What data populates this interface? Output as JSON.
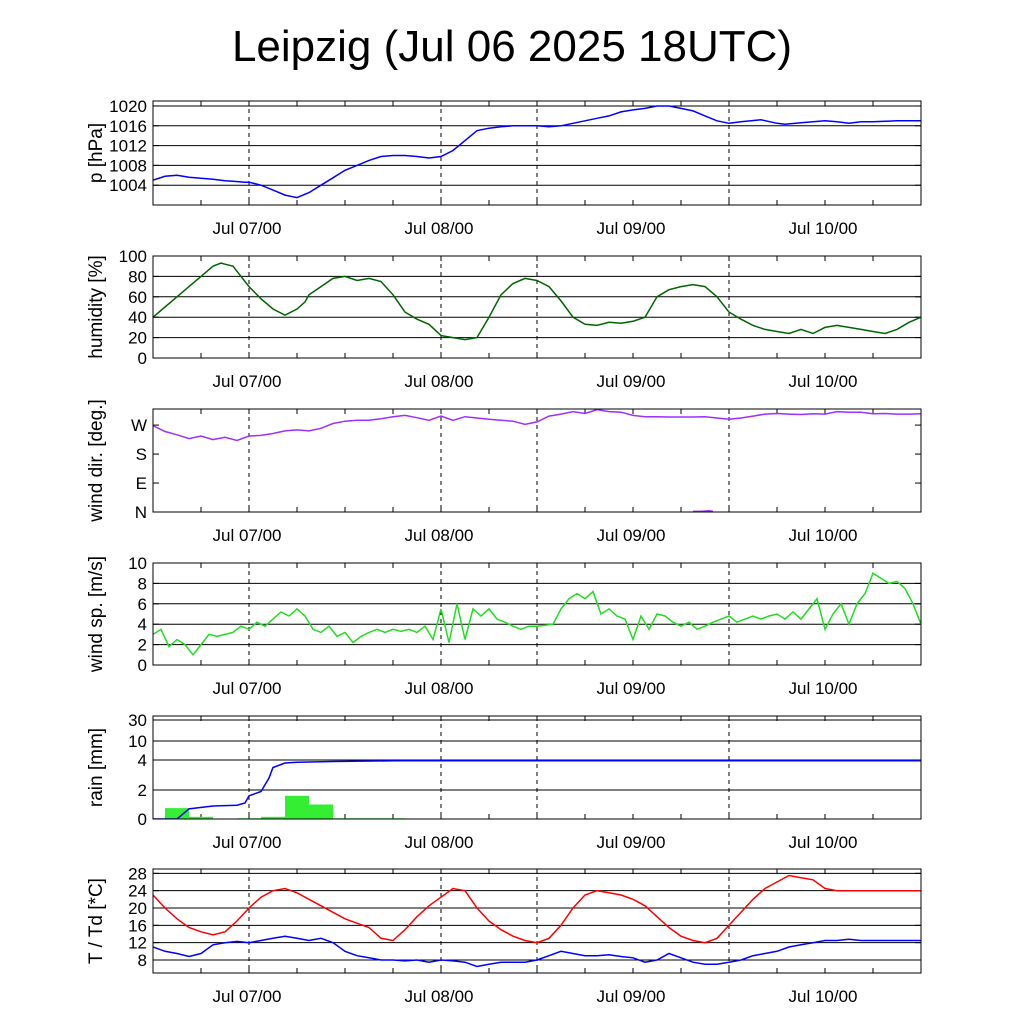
{
  "title": "Leipzig (Jul 06 2025 18UTC)",
  "chart_data": [
    {
      "id": "pressure",
      "type": "line",
      "ylabel": "p [hPa]",
      "ylim": [
        1000,
        1021
      ],
      "yticks": [
        1004,
        1008,
        1012,
        1016,
        1020
      ],
      "grid": true,
      "xlabels": [
        "Jul 07/00",
        "Jul 08/00",
        "Jul 09/00",
        "Jul 10/00"
      ],
      "series": [
        {
          "color": "#0000ff",
          "x": [
            0,
            3,
            6,
            9,
            12,
            15,
            18,
            20,
            23,
            24,
            27,
            30,
            33,
            36,
            39,
            42,
            45,
            48,
            51,
            54,
            57,
            60,
            63,
            66,
            69,
            72,
            75,
            78,
            81,
            84,
            87,
            90,
            93,
            96,
            99,
            102,
            105,
            108,
            111,
            114,
            117,
            120,
            123,
            126,
            129,
            132,
            135,
            138,
            141,
            144,
            147,
            152,
            156,
            158,
            162,
            168,
            171,
            174,
            177,
            180,
            183,
            186,
            192
          ],
          "y": [
            1005,
            1005.8,
            1006,
            1005.6,
            1005.4,
            1005.2,
            1004.9,
            1004.8,
            1004.6,
            1004.6,
            1004,
            1003,
            1002,
            1001.5,
            1002.5,
            1004,
            1005.5,
            1007,
            1008,
            1009,
            1009.8,
            1010,
            1010,
            1009.8,
            1009.5,
            1009.8,
            1011,
            1013,
            1015,
            1015.5,
            1015.8,
            1016,
            1016,
            1016,
            1015.8,
            1016,
            1016.5,
            1017,
            1017.5,
            1018,
            1018.8,
            1019.2,
            1019.5,
            1020,
            1020,
            1019.5,
            1019,
            1018,
            1017,
            1016.5,
            1016.8,
            1017.2,
            1016.5,
            1016.3,
            1016.6,
            1017,
            1016.8,
            1016.5,
            1016.8,
            1016.8,
            1016.9,
            1017,
            1017
          ]
        }
      ]
    },
    {
      "id": "humidity",
      "type": "line",
      "ylabel": "humidity [%]",
      "ylim": [
        0,
        100
      ],
      "yticks": [
        0,
        20,
        40,
        60,
        80,
        100
      ],
      "grid": true,
      "xlabels": [
        "Jul 07/00",
        "Jul 08/00",
        "Jul 09/00",
        "Jul 10/00"
      ],
      "series": [
        {
          "color": "#006400",
          "x": [
            0,
            3,
            6,
            9,
            12,
            15,
            17,
            18,
            20,
            21,
            24,
            27,
            30,
            33,
            36,
            38,
            39,
            42,
            45,
            48,
            51,
            54,
            57,
            60,
            63,
            66,
            69,
            72,
            75,
            78,
            81,
            84,
            87,
            90,
            93,
            96,
            99,
            102,
            105,
            108,
            111,
            114,
            117,
            120,
            123,
            126,
            129,
            132,
            135,
            138,
            141,
            144,
            147,
            150,
            153,
            156,
            159,
            162,
            165,
            168,
            171,
            174,
            177,
            180,
            183,
            186,
            189,
            192
          ],
          "y": [
            40,
            50,
            60,
            70,
            80,
            90,
            93,
            92,
            90,
            85,
            70,
            58,
            48,
            42,
            48,
            55,
            62,
            70,
            78,
            80,
            76,
            78,
            75,
            62,
            45,
            38,
            33,
            22,
            20,
            18,
            20,
            40,
            62,
            73,
            78,
            76,
            70,
            56,
            40,
            33,
            32,
            35,
            34,
            36,
            40,
            60,
            67,
            70,
            72,
            70,
            60,
            45,
            38,
            32,
            28,
            26,
            24,
            28,
            24,
            30,
            32,
            30,
            28,
            26,
            24,
            28,
            35,
            40
          ]
        }
      ]
    },
    {
      "id": "wind_direction",
      "type": "line",
      "ylabel": "wind dir. [deg.]",
      "ylim": [
        0,
        320
      ],
      "yticks": [
        0,
        90,
        180,
        270
      ],
      "yticklabels": [
        "N",
        "E",
        "S",
        "W"
      ],
      "grid": false,
      "xlabels": [
        "Jul 07/00",
        "Jul 08/00",
        "Jul 09/00",
        "Jul 10/00"
      ],
      "series": [
        {
          "color": "#9b30ff",
          "x": [
            0,
            3,
            6,
            9,
            12,
            15,
            18,
            21,
            24,
            27,
            30,
            33,
            36,
            39,
            42,
            45,
            48,
            51,
            54,
            57,
            60,
            63,
            66,
            69,
            72,
            75,
            78,
            81,
            84,
            87,
            90,
            93,
            96,
            99,
            102,
            105,
            108,
            111,
            114,
            117,
            120,
            123,
            126,
            129,
            132,
            135,
            138,
            141,
            144,
            147,
            150,
            153,
            156,
            159,
            162,
            165,
            168,
            171,
            174,
            177,
            180,
            183,
            186,
            189,
            192
          ],
          "y": [
            268,
            250,
            240,
            228,
            236,
            225,
            232,
            222,
            236,
            238,
            244,
            252,
            255,
            252,
            260,
            275,
            282,
            285,
            285,
            290,
            296,
            300,
            293,
            285,
            298,
            285,
            296,
            292,
            288,
            285,
            282,
            272,
            280,
            298,
            304,
            312,
            306,
            318,
            312,
            310,
            300,
            296,
            296,
            295,
            295,
            295,
            296,
            292,
            288,
            292,
            298,
            304,
            306,
            304,
            303,
            305,
            304,
            312,
            310,
            310,
            305,
            306,
            304,
            304,
            305
          ]
        },
        {
          "color": "#9b30ff",
          "x": [
            135,
            137,
            139,
            140
          ],
          "y": [
            2,
            2,
            4,
            2
          ]
        }
      ]
    },
    {
      "id": "wind_speed",
      "type": "line",
      "ylabel": "wind sp. [m/s]",
      "ylim": [
        0,
        10
      ],
      "yticks": [
        0,
        2,
        4,
        6,
        8,
        10
      ],
      "grid": true,
      "xlabels": [
        "Jul 07/00",
        "Jul 08/00",
        "Jul 09/00",
        "Jul 10/00"
      ],
      "series": [
        {
          "color": "#22dd22",
          "x": [
            0,
            2,
            4,
            6,
            8,
            10,
            12,
            14,
            16,
            18,
            20,
            22,
            24,
            26,
            28,
            30,
            32,
            34,
            36,
            38,
            40,
            42,
            44,
            46,
            48,
            50,
            52,
            54,
            56,
            58,
            60,
            62,
            64,
            66,
            68,
            70,
            72,
            74,
            76,
            78,
            80,
            82,
            84,
            86,
            88,
            90,
            92,
            94,
            96,
            98,
            100,
            102,
            104,
            106,
            108,
            110,
            112,
            114,
            116,
            118,
            120,
            122,
            124,
            126,
            128,
            130,
            132,
            134,
            136,
            138,
            140,
            142,
            144,
            146,
            148,
            150,
            152,
            154,
            156,
            158,
            160,
            162,
            164,
            166,
            168,
            170,
            172,
            174,
            176,
            178,
            180,
            182,
            184,
            186,
            188,
            190,
            192
          ],
          "y": [
            3,
            3.5,
            1.8,
            2.5,
            2,
            1,
            2,
            3,
            2.8,
            3,
            3.2,
            3.8,
            3.5,
            4.2,
            3.8,
            4.5,
            5.2,
            4.8,
            5.5,
            4.8,
            3.5,
            3.2,
            3.8,
            2.8,
            3.2,
            2.2,
            2.8,
            3.2,
            3.5,
            3.2,
            3.5,
            3.3,
            3.5,
            3.2,
            3.8,
            2.5,
            5.5,
            2.2,
            6,
            2.5,
            5.5,
            4.8,
            5.5,
            4.5,
            4.2,
            3.8,
            3.5,
            3.8,
            3.8,
            3.9,
            4,
            5.5,
            6.5,
            7,
            6.5,
            7.2,
            5,
            5.5,
            4.8,
            4.5,
            2.5,
            4.8,
            3.5,
            5,
            4.8,
            4.2,
            3.8,
            4.2,
            3.5,
            3.8,
            4.2,
            4.5,
            4.8,
            4.2,
            4.5,
            4.8,
            4.5,
            4.8,
            5,
            4.5,
            5.2,
            4.5,
            5.5,
            6.5,
            3.5,
            5,
            6,
            4,
            6,
            7,
            9,
            8.5,
            8,
            8.2,
            7.5,
            6,
            4
          ]
        }
      ]
    },
    {
      "id": "rain",
      "type": "bar+line",
      "ylabel": "rain [mm]",
      "ylim": [
        0,
        30
      ],
      "yticks": [
        0,
        2,
        4,
        10,
        30
      ],
      "yscale": "nonlinear",
      "grid": true,
      "xlabels": [
        "Jul 07/00",
        "Jul 08/00",
        "Jul 09/00",
        "Jul 10/00"
      ],
      "bars": {
        "color": "#33ee33",
        "bin_hours": 6,
        "start": [
          3,
          9,
          21,
          27,
          33,
          39,
          45,
          51,
          57
        ],
        "values": [
          0.75,
          0.15,
          0.05,
          0.15,
          1.6,
          1.0,
          0.05,
          0.05,
          0.05
        ]
      },
      "series": [
        {
          "color": "#0000ff",
          "x": [
            0,
            3,
            6,
            9,
            15,
            21,
            23,
            24,
            27,
            29,
            30,
            33,
            36,
            45,
            60,
            90,
            120,
            150,
            180,
            192
          ],
          "y": [
            0,
            0,
            0,
            0.7,
            0.9,
            0.95,
            1.1,
            1.6,
            1.9,
            2.8,
            3.5,
            3.8,
            3.85,
            3.9,
            3.95,
            3.95,
            3.95,
            3.95,
            3.95,
            3.95
          ]
        }
      ]
    },
    {
      "id": "temperature",
      "type": "line",
      "ylabel": "T / Td [*C]",
      "ylim": [
        5,
        29
      ],
      "yticks": [
        8,
        12,
        16,
        20,
        24,
        28
      ],
      "grid": true,
      "xlabels": [
        "Jul 07/00",
        "Jul 08/00",
        "Jul 09/00",
        "Jul 10/00"
      ],
      "series": [
        {
          "color": "#ff0000",
          "x": [
            0,
            3,
            6,
            9,
            12,
            15,
            18,
            21,
            24,
            27,
            30,
            33,
            36,
            39,
            42,
            45,
            48,
            51,
            54,
            57,
            60,
            63,
            66,
            69,
            72,
            75,
            78,
            81,
            84,
            87,
            90,
            93,
            96,
            99,
            102,
            105,
            108,
            111,
            114,
            117,
            120,
            123,
            126,
            129,
            132,
            135,
            138,
            141,
            144,
            147,
            150,
            153,
            156,
            159,
            162,
            165,
            168,
            171,
            174,
            177,
            180,
            183,
            186,
            189,
            192
          ],
          "y": [
            23,
            20,
            17.5,
            15.5,
            14.5,
            13.8,
            14.5,
            17,
            20,
            22.5,
            24,
            24.5,
            23.5,
            22,
            20.5,
            19,
            17.5,
            16.5,
            15.5,
            13,
            12.5,
            15,
            18,
            20.5,
            22.5,
            24.5,
            24,
            20,
            17,
            15,
            13.5,
            12.5,
            12,
            13,
            16,
            20,
            23,
            24,
            23.5,
            23,
            22,
            20.5,
            18,
            15.5,
            13.5,
            12.5,
            12,
            13,
            16,
            19,
            22,
            24.5,
            26,
            27.5,
            27,
            26.5,
            24.5,
            24,
            24,
            24,
            24,
            24,
            24,
            24,
            24
          ]
        },
        {
          "color": "#0000ff",
          "x": [
            0,
            3,
            6,
            9,
            12,
            15,
            18,
            21,
            24,
            27,
            30,
            33,
            36,
            39,
            42,
            45,
            48,
            51,
            54,
            57,
            60,
            63,
            66,
            69,
            72,
            75,
            78,
            81,
            84,
            87,
            90,
            93,
            96,
            99,
            102,
            105,
            108,
            111,
            114,
            117,
            120,
            123,
            126,
            129,
            132,
            135,
            138,
            141,
            144,
            147,
            150,
            153,
            156,
            159,
            162,
            165,
            168,
            171,
            174,
            177,
            180,
            183,
            186,
            189,
            192
          ],
          "y": [
            11,
            10,
            9.5,
            8.8,
            9.5,
            11.5,
            12,
            12.3,
            12,
            12.5,
            13,
            13.5,
            13,
            12.5,
            13,
            12,
            10,
            9,
            8.5,
            8,
            8,
            7.8,
            8,
            7.5,
            8,
            7.8,
            7.5,
            6.5,
            7,
            7.5,
            7.5,
            7.5,
            8,
            9,
            10,
            9.5,
            9,
            9,
            9.2,
            8.8,
            8.5,
            7.5,
            8,
            9.5,
            8.5,
            7.5,
            7,
            7,
            7.5,
            8,
            9,
            9.5,
            10,
            11,
            11.5,
            12,
            12.5,
            12.5,
            12.8,
            12.5,
            12.5,
            12.5,
            12.5,
            12.5,
            12.5
          ]
        }
      ]
    }
  ]
}
